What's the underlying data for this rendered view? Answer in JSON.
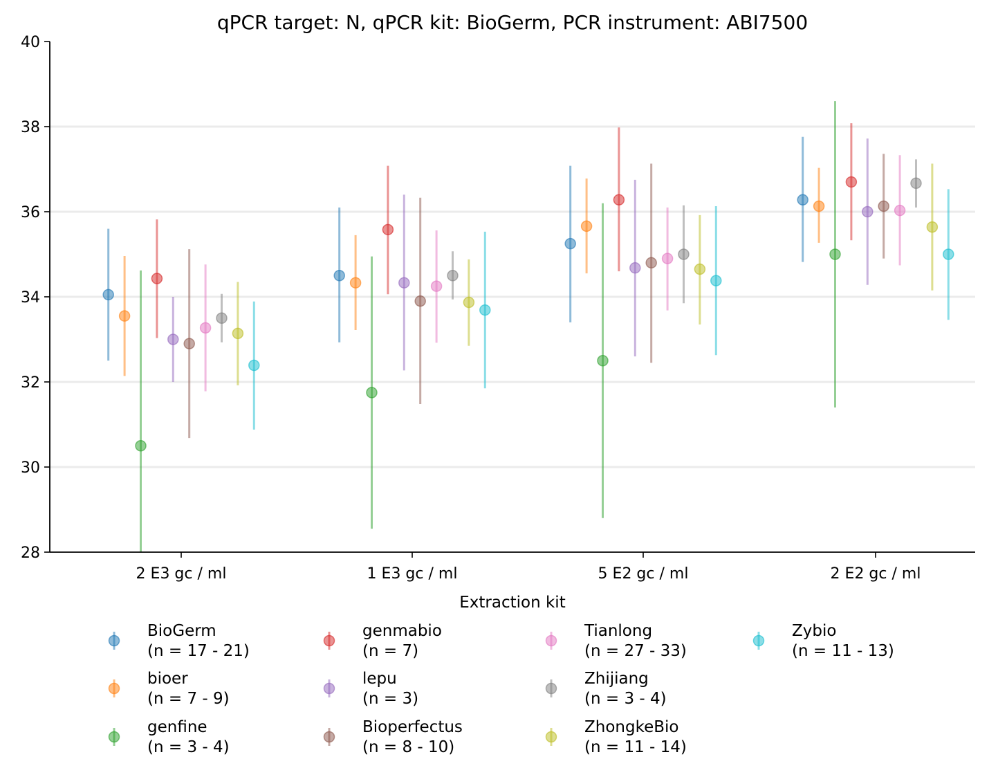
{
  "chart_data": {
    "type": "scatter",
    "title": "qPCR target: N, qPCR kit: BioGerm, PCR instrument: ABI7500",
    "xlabel": "",
    "ylabel": "",
    "ylim": [
      28,
      40
    ],
    "yticks": [
      "28",
      "30",
      "32",
      "34",
      "36",
      "38",
      "40"
    ],
    "grid": "horizontal",
    "categories": [
      "2 E3 gc / ml",
      "1 E3 gc / ml",
      "5 E2 gc / ml",
      "2 E2 gc / ml"
    ],
    "legend": {
      "title": "Extraction kit",
      "placement": "bottom",
      "columns": 4
    },
    "series": [
      {
        "name": "BioGerm",
        "n_label": "(n = 17 - 21)",
        "color": "#1f77b4",
        "values": [
          34.05,
          34.5,
          35.25,
          36.28
        ],
        "lower": [
          32.5,
          32.93,
          33.4,
          34.82
        ],
        "upper": [
          35.6,
          36.1,
          37.08,
          37.76
        ]
      },
      {
        "name": "bioer",
        "n_label": "(n = 7 - 9)",
        "color": "#ff7f0e",
        "values": [
          33.55,
          34.33,
          35.66,
          36.13
        ],
        "lower": [
          32.14,
          33.22,
          34.55,
          35.27
        ],
        "upper": [
          34.96,
          35.45,
          36.78,
          37.03
        ]
      },
      {
        "name": "genfine",
        "n_label": "(n = 3 - 4)",
        "color": "#2ca02c",
        "values": [
          30.5,
          31.75,
          32.5,
          35.0
        ],
        "lower": [
          28.0,
          28.55,
          28.8,
          31.4
        ],
        "upper": [
          34.62,
          34.95,
          36.2,
          38.6
        ]
      },
      {
        "name": "genmabio",
        "n_label": "(n = 7)",
        "color": "#d62728",
        "values": [
          34.43,
          35.58,
          36.28,
          36.7
        ],
        "lower": [
          33.03,
          34.06,
          34.6,
          35.33
        ],
        "upper": [
          35.82,
          37.08,
          37.98,
          38.08
        ]
      },
      {
        "name": "lepu",
        "n_label": "(n = 3)",
        "color": "#9467bd",
        "values": [
          33.0,
          34.33,
          34.68,
          36.0
        ],
        "lower": [
          32.0,
          32.27,
          32.6,
          34.28
        ],
        "upper": [
          34.0,
          36.4,
          36.75,
          37.72
        ]
      },
      {
        "name": "Bioperfectus",
        "n_label": "(n = 8 - 10)",
        "color": "#8c564b",
        "values": [
          32.9,
          33.9,
          34.8,
          36.13
        ],
        "lower": [
          30.68,
          31.48,
          32.45,
          34.9
        ],
        "upper": [
          35.12,
          36.33,
          37.13,
          37.36
        ]
      },
      {
        "name": "Tianlong",
        "n_label": "(n = 27 - 33)",
        "color": "#e377c2",
        "values": [
          33.27,
          34.25,
          34.9,
          36.03
        ],
        "lower": [
          31.78,
          32.92,
          33.68,
          34.74
        ],
        "upper": [
          34.76,
          35.56,
          36.1,
          37.33
        ]
      },
      {
        "name": "Zhijiang",
        "n_label": "(n = 3 - 4)",
        "color": "#7f7f7f",
        "values": [
          33.5,
          34.5,
          35.0,
          36.67
        ],
        "lower": [
          32.93,
          33.94,
          33.85,
          36.1
        ],
        "upper": [
          34.07,
          35.07,
          36.15,
          37.23
        ]
      },
      {
        "name": "ZhongkeBio",
        "n_label": "(n = 11 - 14)",
        "color": "#bcbd22",
        "values": [
          33.14,
          33.87,
          34.65,
          35.64
        ],
        "lower": [
          31.92,
          32.85,
          33.35,
          34.15
        ],
        "upper": [
          34.35,
          34.88,
          35.92,
          37.13
        ]
      },
      {
        "name": "Zybio",
        "n_label": "(n = 11 - 13)",
        "color": "#17becf",
        "values": [
          32.39,
          33.69,
          34.38,
          35.0
        ],
        "lower": [
          30.88,
          31.85,
          32.63,
          33.46
        ],
        "upper": [
          33.89,
          35.53,
          36.13,
          36.53
        ]
      }
    ]
  }
}
